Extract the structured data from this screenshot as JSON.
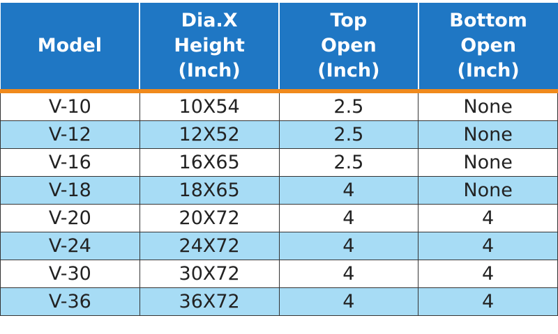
{
  "table": {
    "header": [
      [
        "Model"
      ],
      [
        "Dia.X",
        "Height",
        "(Inch)"
      ],
      [
        "Top",
        "Open",
        "(Inch)"
      ],
      [
        "Bottom",
        "Open",
        "(Inch)"
      ]
    ],
    "rows": [
      [
        "V-10",
        "10X54",
        "2.5",
        "None"
      ],
      [
        "V-12",
        "12X52",
        "2.5",
        "None"
      ],
      [
        "V-16",
        "16X65",
        "2.5",
        "None"
      ],
      [
        "V-18",
        "18X65",
        "4",
        "None"
      ],
      [
        "V-20",
        "20X72",
        "4",
        "4"
      ],
      [
        "V-24",
        "24X72",
        "4",
        "4"
      ],
      [
        "V-30",
        "30X72",
        "4",
        "4"
      ],
      [
        "V-36",
        "36X72",
        "4",
        "4"
      ]
    ]
  }
}
